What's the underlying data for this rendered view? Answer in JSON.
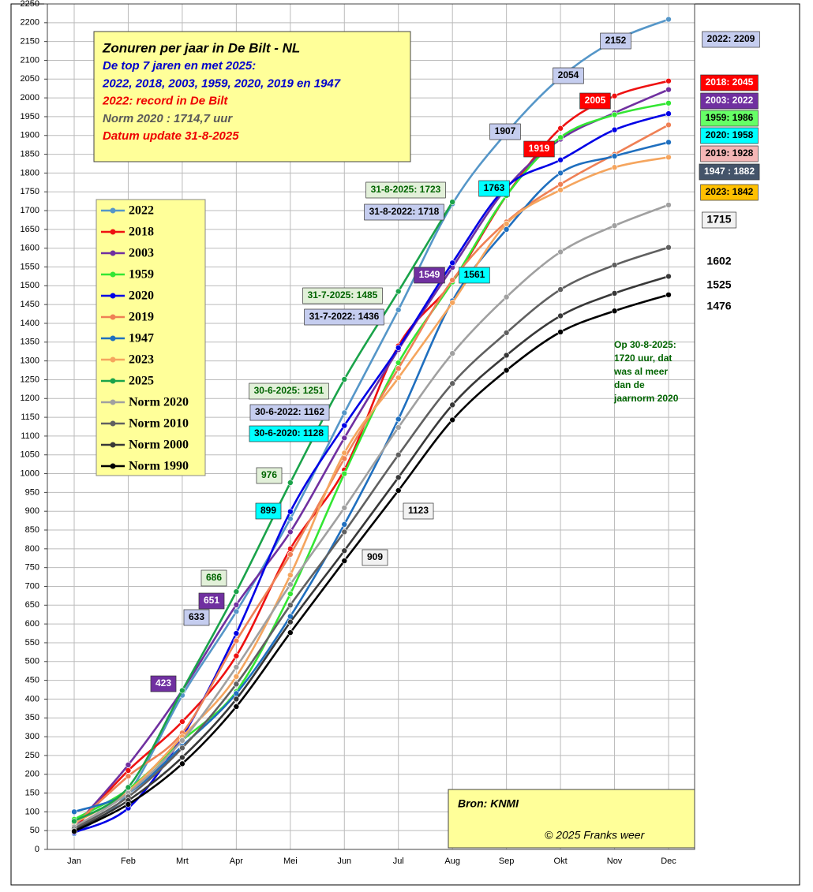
{
  "chart_data": {
    "type": "line",
    "title": "Zonuren per jaar in De Bilt - NL",
    "info_lines": [
      "De top 7 jaren en met 2025:",
      "2022, 2018, 2003, 1959, 2020, 2019 en 1947",
      "2022: record in De Bilt",
      "Norm 2020 : 1714,7 uur",
      "Datum update 31-8-2025"
    ],
    "source": "Bron: KNMI",
    "credit": "© 2025 Franks weer",
    "note_lines": [
      "Op 30-8-2025:",
      "1720 uur, dat",
      "was al meer",
      "dan de",
      "jaarnorm 2020"
    ],
    "categories": [
      "Jan",
      "Feb",
      "Mrt",
      "Apr",
      "Mei",
      "Jun",
      "Jul",
      "Aug",
      "Sep",
      "Okt",
      "Nov",
      "Dec"
    ],
    "ylim": [
      0,
      2250
    ],
    "yticks": [
      0,
      50,
      100,
      150,
      200,
      250,
      300,
      350,
      400,
      450,
      500,
      550,
      600,
      650,
      700,
      750,
      800,
      850,
      900,
      950,
      1000,
      1050,
      1100,
      1150,
      1200,
      1250,
      1300,
      1350,
      1400,
      1450,
      1500,
      1550,
      1600,
      1650,
      1700,
      1750,
      1800,
      1850,
      1900,
      1950,
      2000,
      2050,
      2100,
      2150,
      2200,
      2250
    ],
    "grid": true,
    "legend": "upper left",
    "series": [
      {
        "name": "2022",
        "color": "#5596c8",
        "values": [
          42,
          150,
          410,
          633,
          880,
          1162,
          1436,
          1718,
          1907,
          2054,
          2152,
          2209
        ],
        "value_labels": [
          null,
          null,
          null,
          null,
          null,
          "30-6-2022: 1162",
          "31-7-2022: 1436",
          "31-8-2022: 1718",
          null,
          null,
          null,
          "2022: 2209"
        ]
      },
      {
        "name": "2018",
        "color": "#ee1111",
        "values": [
          55,
          210,
          340,
          515,
          800,
          1010,
          1340,
          1510,
          1740,
          1919,
          2005,
          2045
        ],
        "value_labels": [
          null,
          null,
          null,
          null,
          null,
          null,
          null,
          null,
          null,
          null,
          null,
          "2018: 2045"
        ]
      },
      {
        "name": "2003",
        "color": "#7030a0",
        "values": [
          60,
          225,
          423,
          651,
          845,
          1095,
          1330,
          1549,
          1760,
          1890,
          1960,
          2022
        ],
        "value_labels": [
          null,
          null,
          null,
          null,
          null,
          null,
          null,
          null,
          null,
          null,
          null,
          "2003:  2022"
        ]
      },
      {
        "name": "1959",
        "color": "#33e633",
        "values": [
          80,
          160,
          290,
          420,
          680,
          1000,
          1295,
          1510,
          1740,
          1895,
          1955,
          1986
        ],
        "value_labels": [
          null,
          null,
          null,
          null,
          null,
          null,
          null,
          null,
          null,
          null,
          null,
          "1959:  1986"
        ]
      },
      {
        "name": "2020",
        "color": "#0000e6",
        "values": [
          45,
          110,
          300,
          575,
          899,
          1128,
          1335,
          1561,
          1763,
          1835,
          1915,
          1958
        ],
        "value_labels": [
          null,
          null,
          null,
          null,
          null,
          "30-6-2020: 1128",
          null,
          null,
          null,
          null,
          null,
          "2020:  1958"
        ]
      },
      {
        "name": "2019",
        "color": "#ef8055",
        "values": [
          65,
          195,
          310,
          555,
          785,
          1040,
          1280,
          1515,
          1670,
          1770,
          1850,
          1928
        ],
        "value_labels": [
          null,
          null,
          null,
          null,
          null,
          null,
          null,
          null,
          null,
          null,
          null,
          "2019:  1928"
        ]
      },
      {
        "name": "1947",
        "color": "#1f6fbf",
        "values": [
          100,
          150,
          275,
          415,
          620,
          865,
          1145,
          1460,
          1650,
          1800,
          1845,
          1882
        ],
        "value_labels": [
          null,
          null,
          null,
          null,
          null,
          null,
          null,
          null,
          null,
          null,
          null,
          "1947 : 1882"
        ]
      },
      {
        "name": "2023",
        "color": "#f5a55e",
        "values": [
          70,
          155,
          300,
          460,
          730,
          1055,
          1255,
          1455,
          1665,
          1755,
          1815,
          1842
        ],
        "value_labels": [
          null,
          null,
          null,
          null,
          null,
          null,
          null,
          null,
          null,
          null,
          null,
          "2023: 1842"
        ]
      },
      {
        "name": "2025",
        "color": "#1aa34a",
        "values": [
          75,
          165,
          423,
          686,
          976,
          1251,
          1485,
          1723,
          null,
          null,
          null,
          null
        ],
        "value_labels": [
          null,
          null,
          null,
          null,
          null,
          "30-6-2025: 1251",
          "31-7-2025: 1485",
          "31-8-2025: 1723",
          null,
          null,
          null,
          null
        ]
      },
      {
        "name": "Norm 2020",
        "color": "#a0a0a0",
        "values": [
          60,
          150,
          290,
          485,
          705,
          909,
          1123,
          1320,
          1470,
          1590,
          1660,
          1715
        ]
      },
      {
        "name": "Norm 2010",
        "color": "#606060",
        "values": [
          55,
          140,
          270,
          440,
          650,
          845,
          1050,
          1240,
          1375,
          1490,
          1555,
          1602
        ]
      },
      {
        "name": "Norm 2000",
        "color": "#383838",
        "values": [
          50,
          130,
          245,
          400,
          605,
          795,
          990,
          1183,
          1315,
          1420,
          1480,
          1525
        ]
      },
      {
        "name": "Norm 1990",
        "color": "#000000",
        "values": [
          48,
          120,
          228,
          380,
          577,
          768,
          955,
          1143,
          1275,
          1377,
          1433,
          1476
        ]
      }
    ]
  }
}
